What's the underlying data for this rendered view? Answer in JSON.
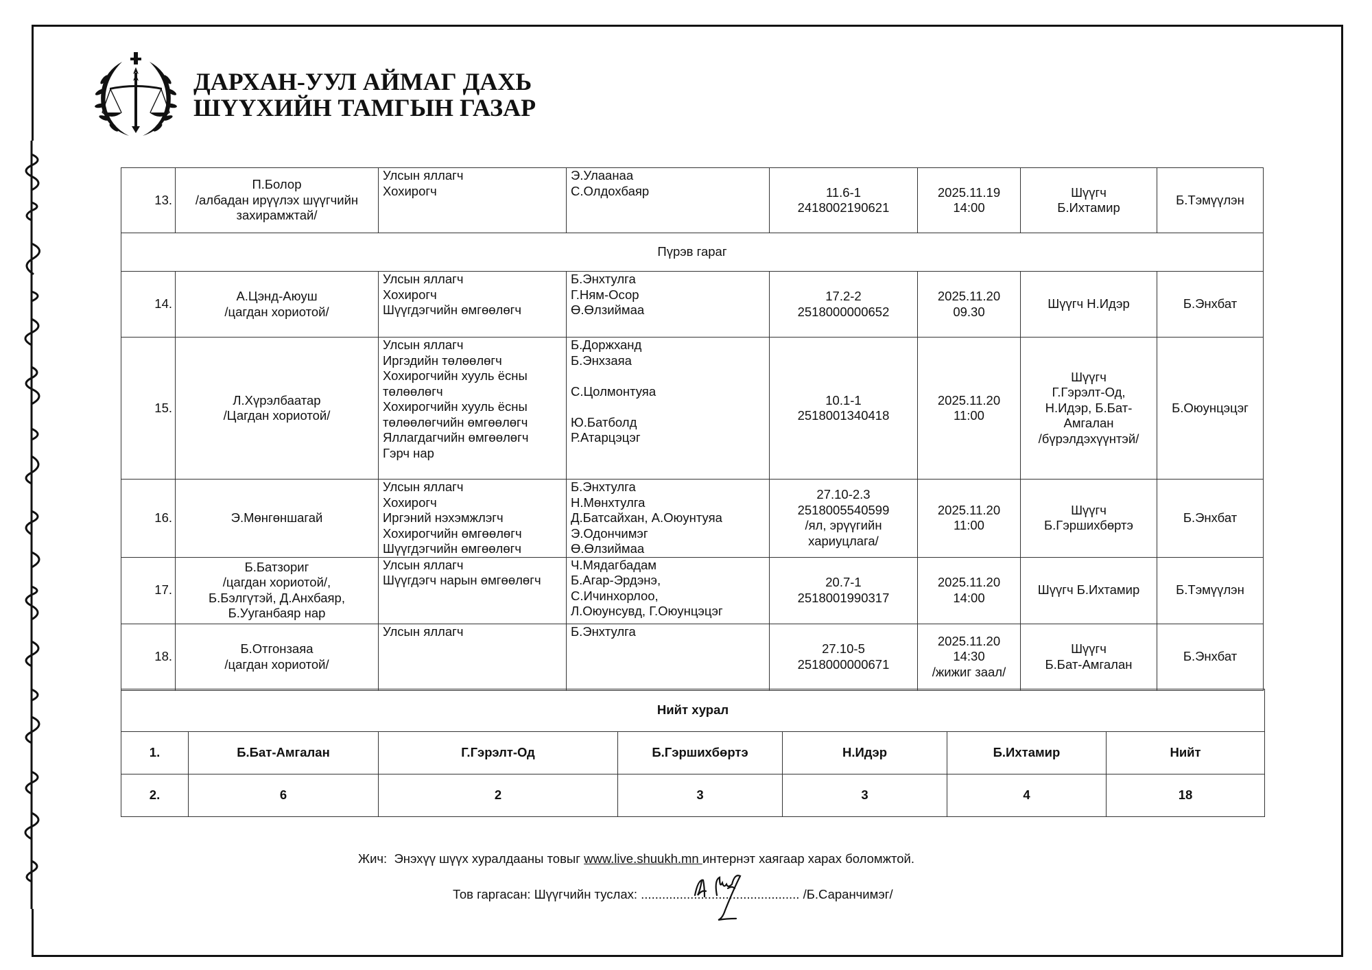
{
  "header": {
    "org_line1": "ДАРХАН-УУЛ АЙМАГ ДАХЬ",
    "org_line2": "ШҮҮХИЙН ТАМГЫН ГАЗАР",
    "logo_icon": "court-emblem-scales-wreath-icon"
  },
  "side_strip": {
    "icon": "mongolian-script-vertical-text"
  },
  "schedule": {
    "rows": [
      {
        "no": "13.",
        "defendant": "П.Болор\n/албадан ирүүлэх шүүгчийн захирамжтай/",
        "roles": "Улсын яллагч\nХохирогч",
        "participants": "Э.Улаанаа\nС.Олдохбаяр",
        "case": "11.6-1\n2418002190621",
        "datetime": "2025.11.19\n14:00",
        "judge": "Шүүгч\nБ.Ихтамир",
        "secretary": "Б.Тэмүүлэн"
      },
      {
        "day": "Пүрэв гараг"
      },
      {
        "no": "14.",
        "defendant": "А.Цэнд-Аюуш\n/цагдан хориотой/",
        "roles": "Улсын яллагч\nХохирогч\nШүүгдэгчийн өмгөөлөгч",
        "participants": "Б.Энхтулга\nГ.Ням-Осор\nӨ.Өлзиймаа",
        "case": "17.2-2\n2518000000652",
        "datetime": "2025.11.20\n09.30",
        "judge": "Шүүгч Н.Идэр",
        "secretary": "Б.Энхбат"
      },
      {
        "no": "15.",
        "defendant": "Л.Хүрэлбаатар\n/Цагдан хориотой/",
        "roles": "Улсын яллагч\nИргэдийн төлөөлөгч\nХохирогчийн хууль ёсны төлөөлөгч\nХохирогчийн хууль ёсны төлөөлөгчийн өмгөөлөгч\nЯллагдагчийн өмгөөлөгч\nГэрч нар",
        "participants": "Б.Доржханд\nБ.Энхзаяа\n\nС.Цолмонтуяа\n\nЮ.Батболд\nР.Атарцэцэг",
        "case": "10.1-1\n2518001340418",
        "datetime": "2025.11.20\n11:00",
        "judge": "Шүүгч\nГ.Гэрэлт-Од,\nН.Идэр, Б.Бат-Амгалан\n/бүрэлдэхүүнтэй/",
        "secretary": "Б.Оюунцэцэг"
      },
      {
        "no": "16.",
        "defendant": "Э.Мөнгөншагай",
        "roles": "Улсын яллагч\nХохирогч\nИргэний нэхэмжлэгч\nХохирогчийн өмгөөлөгч\nШүүгдэгчийн өмгөөлөгч",
        "participants": "Б.Энхтулга\nН.Мөнхтулга\nД.Батсайхан, А.Оюунтуяа\nЭ.Одончимэг\nӨ.Өлзиймаа",
        "case": "27.10-2.3\n2518005540599\n/ял, эрүүгийн хариуцлага/",
        "datetime": "2025.11.20\n11:00",
        "judge": "Шүүгч\nБ.Гэршихбөртэ",
        "secretary": "Б.Энхбат"
      },
      {
        "no": "17.",
        "defendant": "Б.Батзориг\n/цагдан хориотой/,\nБ.Бэлгүтэй, Д.Анхбаяр,\nБ.Ууганбаяр нар",
        "roles": "Улсын яллагч\nШүүгдэгч нарын өмгөөлөгч",
        "participants": "Ч.Мядагбадам\nБ.Агар-Эрдэнэ,\nС.Ичинхорлоо,\nЛ.Оюунсувд, Г.Оюунцэцэг",
        "case": "20.7-1\n2518001990317",
        "datetime": "2025.11.20\n14:00",
        "judge": "Шүүгч Б.Ихтамир",
        "secretary": "Б.Тэмүүлэн"
      },
      {
        "no": "18.",
        "defendant": "Б.Отгонзаяа\n/цагдан хориотой/",
        "roles": "Улсын яллагч",
        "participants": "Б.Энхтулга",
        "case": "27.10-5\n2518000000671",
        "datetime": "2025.11.20\n14:30\n/жижиг заал/",
        "judge": "Шүүгч\nБ.Бат-Амгалан",
        "secretary": "Б.Энхбат"
      }
    ]
  },
  "summary": {
    "title": "Нийт хурал",
    "header": [
      "1.",
      "Б.Бат-Амгалан",
      "Г.Гэрэлт-Од",
      "Б.Гэршихбөртэ",
      "Н.Идэр",
      "Б.Ихтамир",
      "Нийт"
    ],
    "values": [
      "2.",
      "6",
      "2",
      "3",
      "3",
      "4",
      "18"
    ]
  },
  "footer": {
    "note_prefix": "Жич:  Энэхүү шүүх хуралдааны товыг ",
    "note_link": "www.live.shuukh.mn ",
    "note_suffix": "интернэт хаягаар харах боломжтой.",
    "prepared_label": "Тов гаргасан: Шүүгчийн туслах: ............................................. /Б.Саранчимэг/",
    "signature_icon": "handwritten-signature"
  }
}
